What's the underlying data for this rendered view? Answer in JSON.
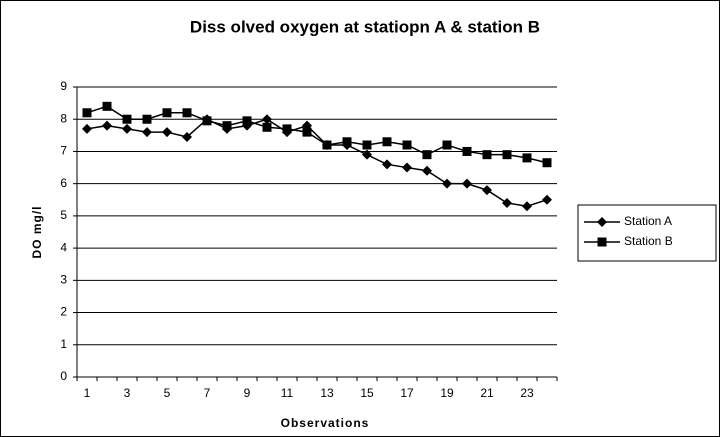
{
  "chart_data": {
    "type": "line",
    "title": "Diss olved oxygen at statiopn A & station B",
    "x_label": "Observations",
    "y_label": "DO mg/l",
    "categories": [
      "1",
      null,
      "3",
      null,
      "5",
      null,
      "7",
      null,
      "9",
      null,
      "11",
      null,
      "13",
      null,
      "15",
      null,
      "17",
      null,
      "19",
      null,
      "21",
      null,
      "23",
      null
    ],
    "series": [
      {
        "name": "Station A",
        "color": "#000000",
        "marker": "diamond",
        "values": [
          7.7,
          7.8,
          7.7,
          7.6,
          7.6,
          7.45,
          8.0,
          7.7,
          7.8,
          8.0,
          7.6,
          7.8,
          7.2,
          7.2,
          6.9,
          6.6,
          6.5,
          6.4,
          6.0,
          6.0,
          5.8,
          5.4,
          5.3,
          5.5
        ]
      },
      {
        "name": "Station B",
        "color": "#000000",
        "marker": "square",
        "values": [
          8.2,
          8.4,
          8.0,
          8.0,
          8.2,
          8.2,
          7.95,
          7.8,
          7.95,
          7.75,
          7.7,
          7.6,
          7.2,
          7.3,
          7.2,
          7.3,
          7.2,
          6.9,
          7.2,
          7.0,
          6.9,
          6.9,
          6.8,
          6.65
        ]
      }
    ],
    "ylim": [
      0,
      9
    ],
    "yticks": [
      0,
      1,
      2,
      3,
      4,
      5,
      6,
      7,
      8,
      9
    ],
    "grid": true,
    "legend": "right"
  }
}
